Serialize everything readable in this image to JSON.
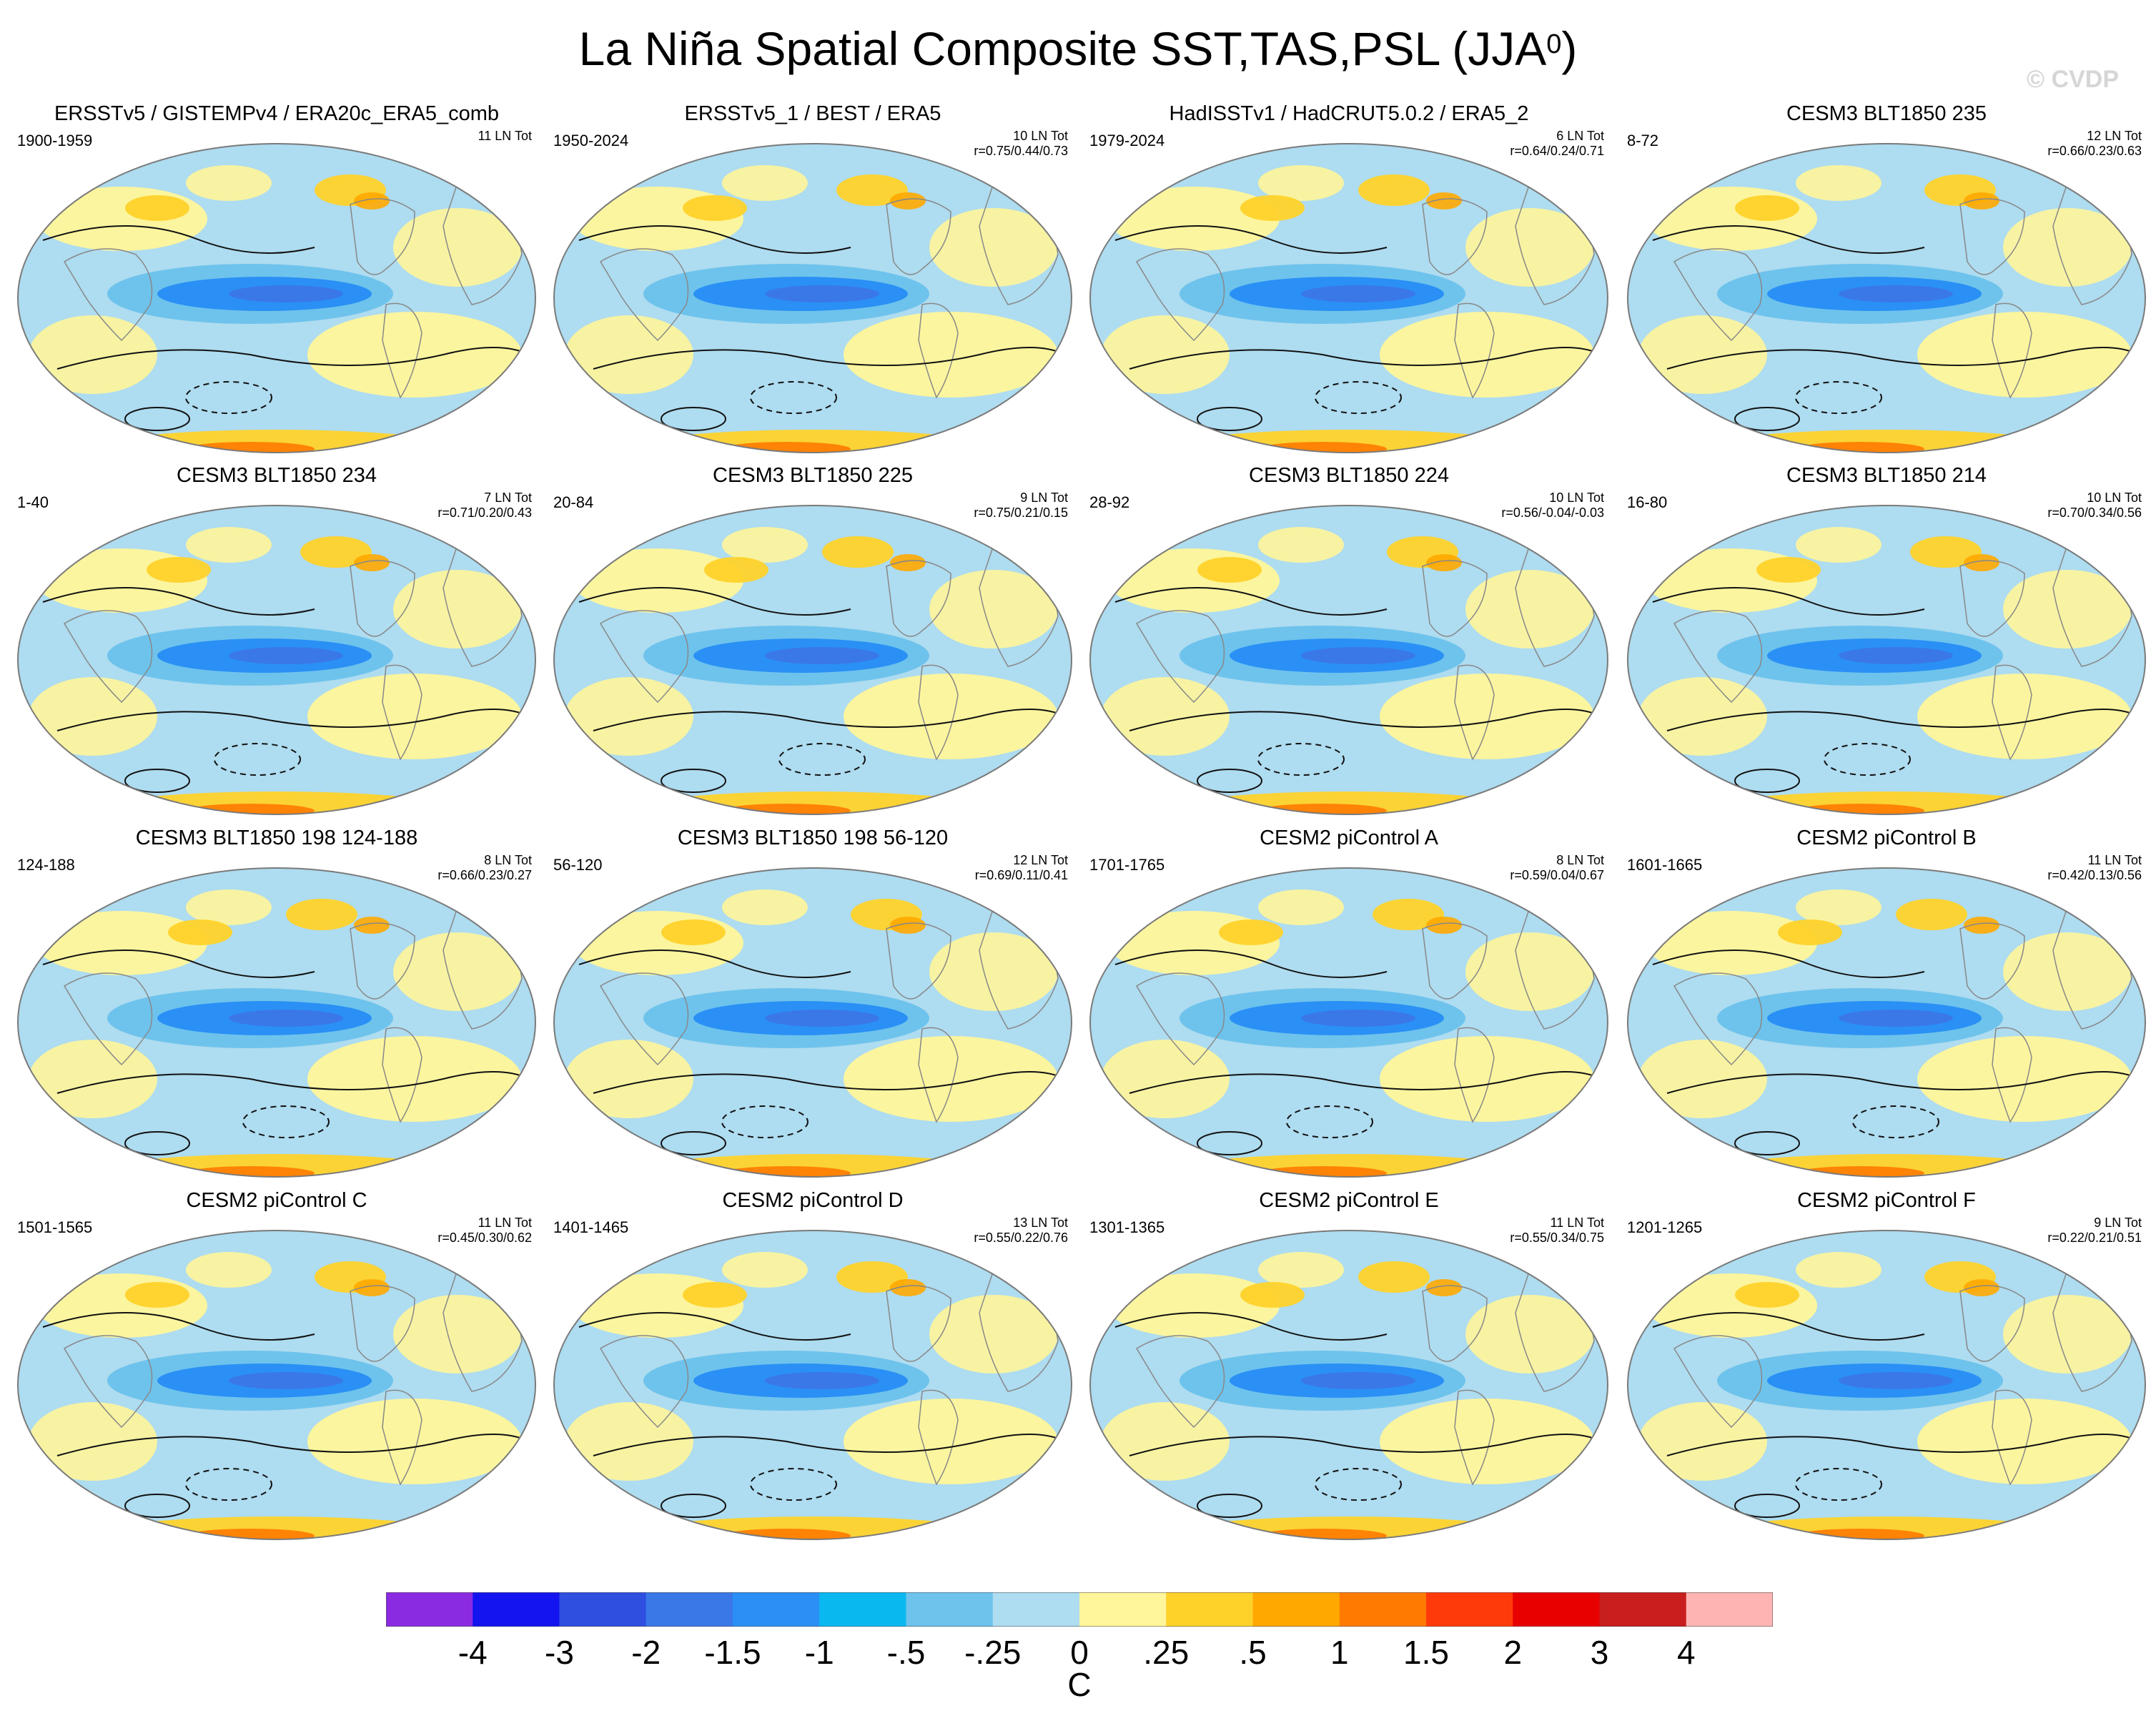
{
  "figure": {
    "title": "La Niña Spatial Composite SST,TAS,PSL (JJA",
    "title_superscript": "0",
    "title_suffix": ")",
    "watermark": "© CVDP"
  },
  "panels": [
    {
      "title": "ERSSTv5 / GISTEMPv4 / ERA20c_ERA5_comb",
      "years": "1900-1959",
      "count": "11 LN Tot",
      "stats": ""
    },
    {
      "title": "ERSSTv5_1 / BEST / ERA5",
      "years": "1950-2024",
      "count": "10 LN Tot",
      "stats": "r=0.75/0.44/0.73"
    },
    {
      "title": "HadISSTv1 / HadCRUT5.0.2 / ERA5_2",
      "years": "1979-2024",
      "count": "6 LN Tot",
      "stats": "r=0.64/0.24/0.71"
    },
    {
      "title": "CESM3 BLT1850 235",
      "years": "8-72",
      "count": "12 LN Tot",
      "stats": "r=0.66/0.23/0.63"
    },
    {
      "title": "CESM3 BLT1850 234",
      "years": "1-40",
      "count": "7 LN Tot",
      "stats": "r=0.71/0.20/0.43"
    },
    {
      "title": "CESM3 BLT1850 225",
      "years": "20-84",
      "count": "9 LN Tot",
      "stats": "r=0.75/0.21/0.15"
    },
    {
      "title": "CESM3 BLT1850 224",
      "years": "28-92",
      "count": "10 LN Tot",
      "stats": "r=0.56/-0.04/-0.03"
    },
    {
      "title": "CESM3 BLT1850 214",
      "years": "16-80",
      "count": "10 LN Tot",
      "stats": "r=0.70/0.34/0.56"
    },
    {
      "title": "CESM3 BLT1850 198 124-188",
      "years": "124-188",
      "count": "8 LN Tot",
      "stats": "r=0.66/0.23/0.27"
    },
    {
      "title": "CESM3 BLT1850 198 56-120",
      "years": "56-120",
      "count": "12 LN Tot",
      "stats": "r=0.69/0.11/0.41"
    },
    {
      "title": "CESM2 piControl A",
      "years": "1701-1765",
      "count": "8 LN Tot",
      "stats": "r=0.59/0.04/0.67"
    },
    {
      "title": "CESM2 piControl B",
      "years": "1601-1665",
      "count": "11 LN Tot",
      "stats": "r=0.42/0.13/0.56"
    },
    {
      "title": "CESM2 piControl C",
      "years": "1501-1565",
      "count": "11 LN Tot",
      "stats": "r=0.45/0.30/0.62"
    },
    {
      "title": "CESM2 piControl D",
      "years": "1401-1465",
      "count": "13 LN Tot",
      "stats": "r=0.55/0.22/0.76"
    },
    {
      "title": "CESM2 piControl E",
      "years": "1301-1365",
      "count": "11 LN Tot",
      "stats": "r=0.55/0.34/0.75"
    },
    {
      "title": "CESM2 piControl F",
      "years": "1201-1265",
      "count": "9 LN Tot",
      "stats": "r=0.22/0.21/0.51"
    }
  ],
  "colorbar": {
    "units": "C",
    "tick_labels": [
      "-4",
      "-3",
      "-2",
      "-1.5",
      "-1",
      "-.5",
      "-.25",
      "0",
      ".25",
      ".5",
      "1",
      "1.5",
      "2",
      "3",
      "4"
    ],
    "colors": [
      "#8a2be2",
      "#1414f0",
      "#2e4fe0",
      "#3a78e8",
      "#2a90f5",
      "#0ab8f0",
      "#6ec3ec",
      "#aedcf0",
      "#fff59a",
      "#ffd22a",
      "#ffa800",
      "#ff7a00",
      "#ff3a0a",
      "#e80000",
      "#c81e1e",
      "#ffb4b4"
    ]
  }
}
